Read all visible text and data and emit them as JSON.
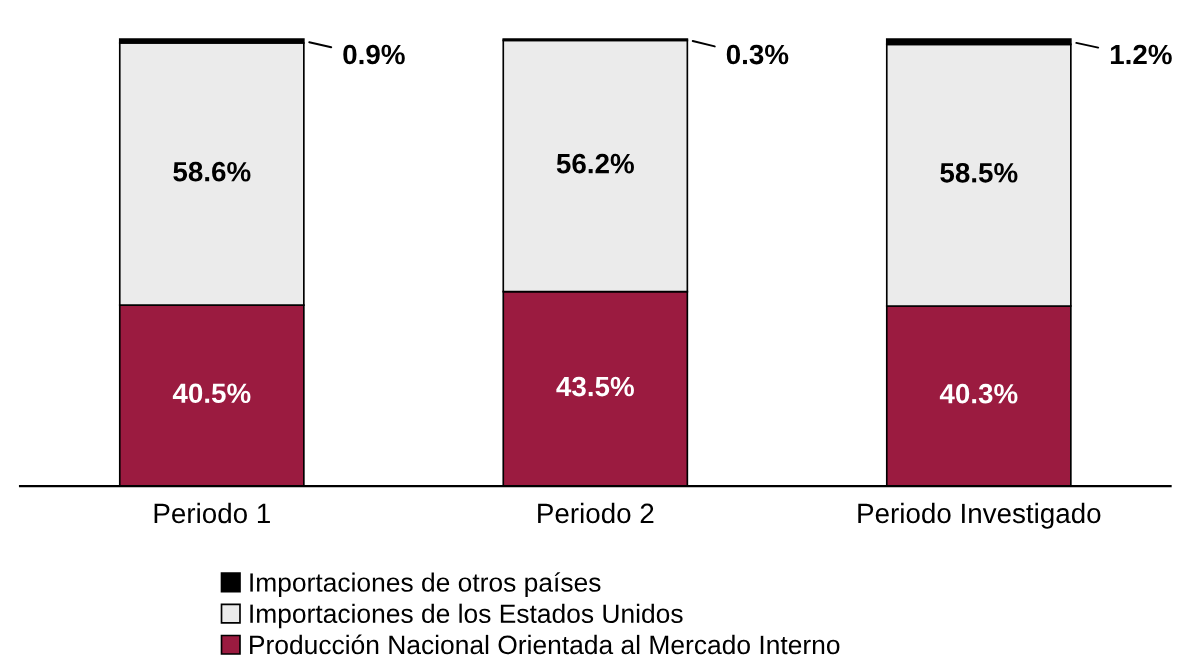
{
  "chart_data": {
    "type": "bar",
    "stacked": true,
    "categories": [
      "Periodo 1",
      "Periodo 2",
      "Periodo Investigado"
    ],
    "series": [
      {
        "name": "Producción Nacional Orientada al Mercado Interno",
        "color": "#9b1b40",
        "values": [
          40.5,
          43.5,
          40.3
        ],
        "value_labels": [
          "40.5%",
          "43.5%",
          "40.3%"
        ]
      },
      {
        "name": "Importaciones de los Estados Unidos",
        "color": "#ebebeb",
        "values": [
          58.6,
          56.2,
          58.5
        ],
        "value_labels": [
          "58.6%",
          "56.2%",
          "58.5%"
        ]
      },
      {
        "name": "Importaciones de otros países",
        "color": "#000000",
        "values": [
          0.9,
          0.3,
          1.2
        ],
        "value_labels": [
          "0.9%",
          "0.3%",
          "1.2%"
        ]
      }
    ],
    "legend": "bottom",
    "grid": false,
    "tick_labels": "x"
  }
}
